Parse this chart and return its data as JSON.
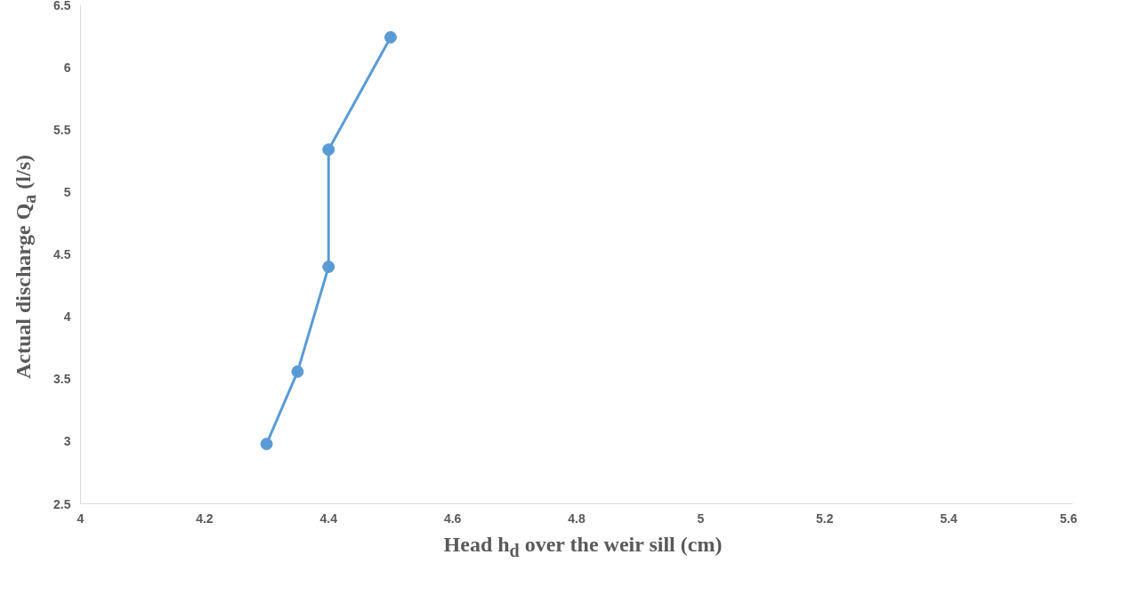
{
  "chart_data": {
    "type": "line",
    "xlabel": "Head h$_{d}$ over the weir sill (cm)",
    "ylabel": "Actual discharge Q$_{a}$ (l/s)",
    "x": [
      4.3,
      4.35,
      4.4,
      4.4,
      4.5
    ],
    "series": [
      {
        "color": "#5b9bd5",
        "values": [
          2.98,
          3.56,
          4.4,
          5.34,
          6.24
        ]
      }
    ],
    "xlim": [
      4,
      5.6
    ],
    "xticks": [
      4,
      4.2,
      4.4,
      4.6,
      4.8,
      5,
      5.2,
      5.4,
      5.6
    ],
    "ylim": [
      2.5,
      6.5
    ],
    "yticks": [
      2.5,
      3,
      3.5,
      4,
      4.5,
      5,
      5.5,
      6,
      6.5
    ],
    "grid": false,
    "marker": "circle",
    "line_style": "solid"
  }
}
